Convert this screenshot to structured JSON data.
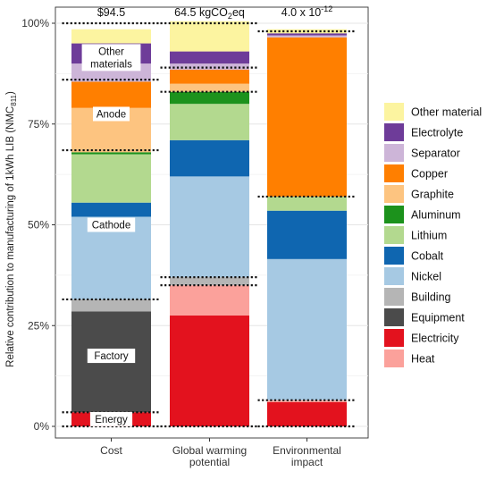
{
  "chart_data": {
    "type": "bar",
    "stacked": true,
    "ylabel": "Relative contribution to manufacturing of 1kWh LIB (NMC",
    "ylabel_sub": "811",
    "ylabel_close": ")",
    "yticks": [
      {
        "value": 0,
        "label": "0%"
      },
      {
        "value": 25,
        "label": "25%"
      },
      {
        "value": 50,
        "label": "50%"
      },
      {
        "value": 75,
        "label": "75%"
      },
      {
        "value": 100,
        "label": "100%"
      }
    ],
    "ylim": [
      0,
      100
    ],
    "grid": true,
    "legend_position": "right",
    "categories": [
      {
        "label_lines": [
          "Cost"
        ],
        "top_label": "$94.5"
      },
      {
        "label_lines": [
          "Global warming",
          "potential"
        ],
        "top_label": "64.5 kgCO",
        "top_label_sub": "2",
        "top_label_tail": "eq"
      },
      {
        "label_lines": [
          "Environmental",
          "impact"
        ],
        "top_label": "4.0 x 10",
        "top_label_sup": "-12"
      }
    ],
    "series": [
      {
        "name": "Electricity",
        "color": "#e3121e",
        "values": [
          3.5,
          27.5,
          6.0
        ]
      },
      {
        "name": "Heat",
        "color": "#fba19b",
        "values": [
          0,
          7.5,
          0.5
        ]
      },
      {
        "name": "Equipment",
        "color": "#4b4b4b",
        "values": [
          25.0,
          0,
          0
        ]
      },
      {
        "name": "Building",
        "color": "#b5b5b5",
        "values": [
          3.0,
          2.0,
          0
        ]
      },
      {
        "name": "Nickel",
        "color": "#a6c9e3",
        "values": [
          20.5,
          25.0,
          35.0
        ]
      },
      {
        "name": "Cobalt",
        "color": "#0f66b0",
        "values": [
          3.5,
          9.0,
          12.0
        ]
      },
      {
        "name": "Lithium",
        "color": "#b3d98f",
        "values": [
          12.0,
          9.0,
          3.5
        ]
      },
      {
        "name": "Aluminum",
        "color": "#1c921c",
        "values": [
          0.5,
          3.0,
          0
        ]
      },
      {
        "name": "Graphite",
        "color": "#fdc480",
        "values": [
          11.0,
          2.0,
          0
        ]
      },
      {
        "name": "Copper",
        "color": "#ff7f00",
        "values": [
          6.5,
          3.5,
          39.5
        ]
      },
      {
        "name": "Separator",
        "color": "#cdb5d8",
        "values": [
          4.5,
          1.5,
          0.5
        ]
      },
      {
        "name": "Electrolyte",
        "color": "#6e3c99",
        "values": [
          5.0,
          3.0,
          0.5
        ]
      },
      {
        "name": "Other material",
        "color": "#fcf4a0",
        "values": [
          3.5,
          7.5,
          1.0
        ]
      }
    ],
    "legend_order": [
      "Other material",
      "Electrolyte",
      "Separator",
      "Copper",
      "Graphite",
      "Aluminum",
      "Lithium",
      "Cobalt",
      "Nickel",
      "Building",
      "Equipment",
      "Electricity",
      "Heat"
    ],
    "group_boundaries": [
      [
        0,
        3.5,
        31.5,
        68.5,
        86.0,
        100
      ],
      [
        0,
        35.0,
        37.0,
        83.0,
        89.0,
        100
      ],
      [
        0,
        6.5,
        57.0,
        98.0
      ]
    ],
    "annotations": [
      {
        "bar": 0,
        "value": 1.8,
        "text": "Energy"
      },
      {
        "bar": 0,
        "value": 17.5,
        "text": "Factory"
      },
      {
        "bar": 0,
        "value": 50.0,
        "text": "Cathode"
      },
      {
        "bar": 0,
        "value": 77.5,
        "text": "Anode"
      },
      {
        "bar": 0,
        "value": 91.5,
        "text": "Other",
        "text2": "materials"
      }
    ]
  }
}
